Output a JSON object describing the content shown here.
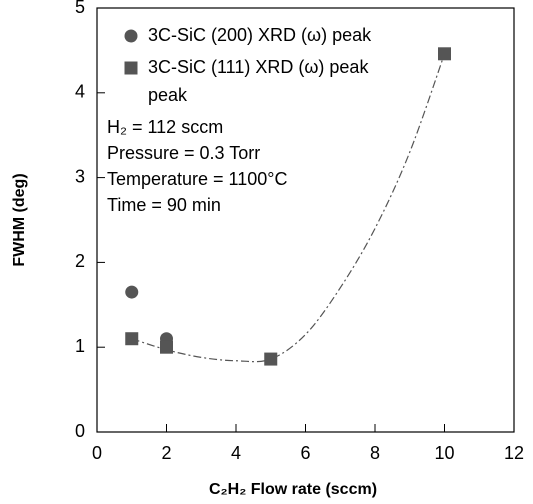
{
  "chart_data": {
    "type": "scatter",
    "x_label": "C₂H₂ Flow rate (sccm)",
    "y_label": "FWHM (deg)",
    "xlim": [
      0,
      12
    ],
    "xticks": [
      0,
      2,
      4,
      6,
      8,
      10,
      12
    ],
    "ylim": [
      0,
      5
    ],
    "yticks": [
      0,
      1,
      2,
      3,
      4,
      5
    ],
    "series": [
      {
        "name": "3C-SiC (200) XRD (ω) peak",
        "color": "#555555",
        "marker": "circle",
        "x": [
          1,
          2
        ],
        "values": [
          1.65,
          1.1
        ]
      },
      {
        "name": "3C-SiC (111) XRD (ω) peak",
        "color": "#555555",
        "marker": "square",
        "x": [
          1,
          2,
          5,
          10
        ],
        "values": [
          1.1,
          1.0,
          0.86,
          4.46
        ]
      }
    ],
    "legend_extra": "peak",
    "annotations": [
      "H₂ = 112 sccm",
      "Pressure = 0.3 Torr",
      "Temperature = 1100°C",
      "Time = 90 min"
    ],
    "trendline": {
      "color": "#555555",
      "x": [
        1,
        2,
        3,
        4,
        5,
        6,
        7,
        8,
        9,
        10
      ],
      "values": [
        1.1,
        0.97,
        0.88,
        0.84,
        0.86,
        1.15,
        1.7,
        2.4,
        3.3,
        4.46
      ]
    }
  }
}
